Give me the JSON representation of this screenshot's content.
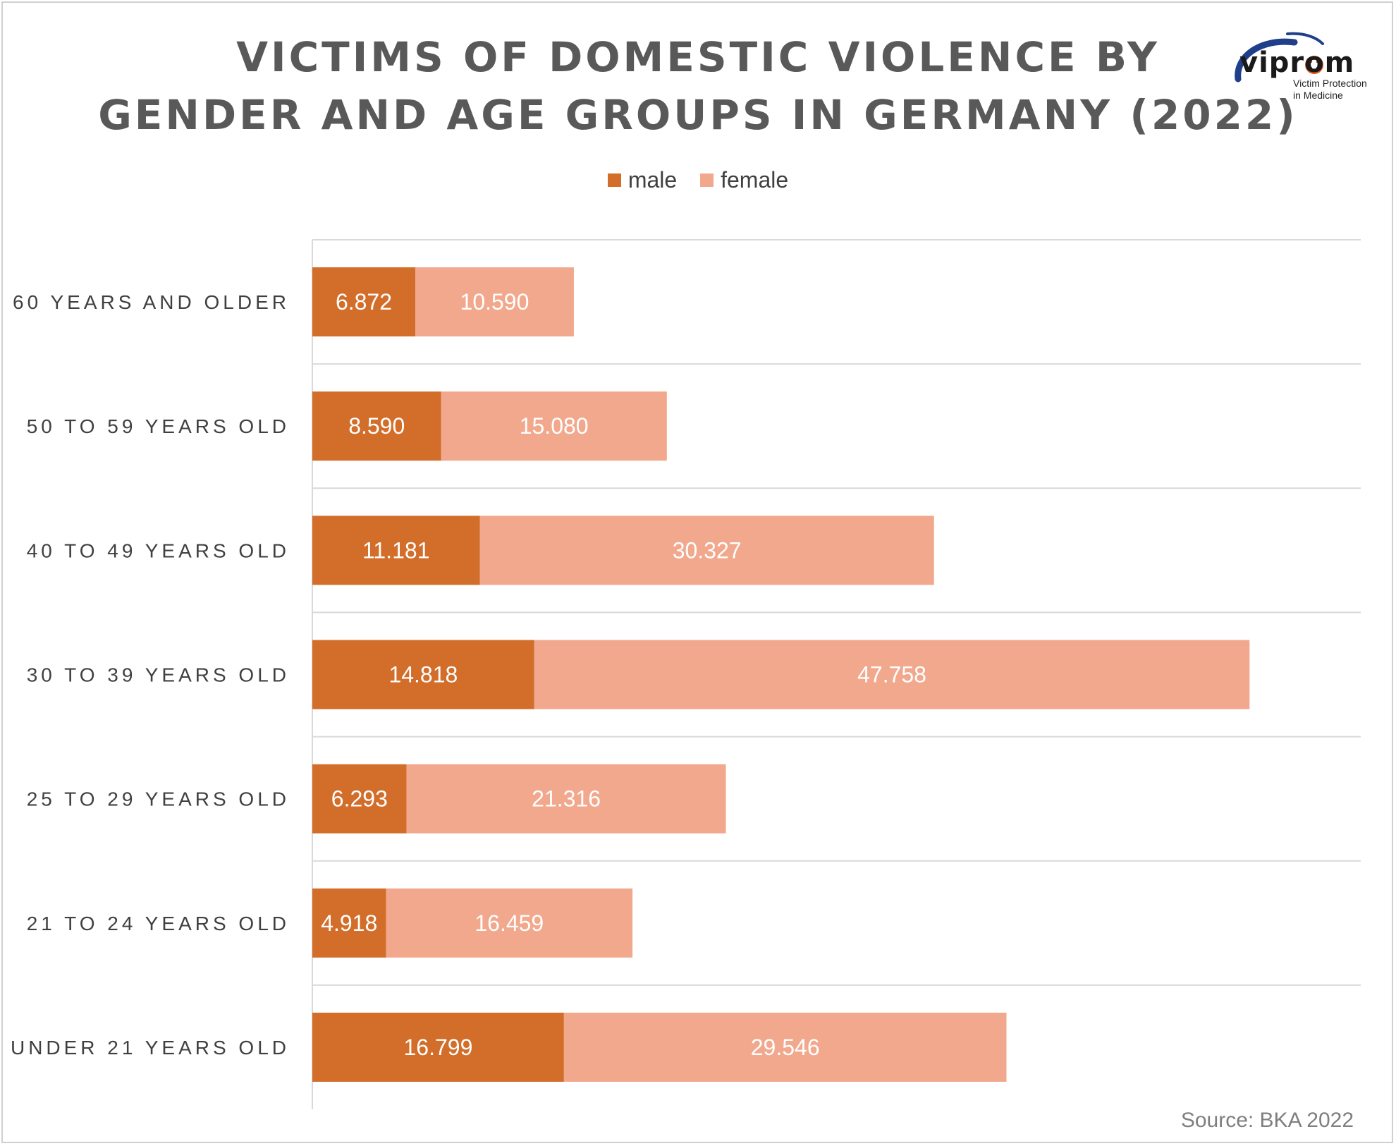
{
  "title": {
    "line1": "VICTIMS OF DOMESTIC VIOLENCE BY",
    "line2": "GENDER AND AGE GROUPS IN GERMANY (2022)"
  },
  "logo": {
    "name": "viprom",
    "subtitle_line1": "Victim Protection",
    "subtitle_line2": "in Medicine"
  },
  "source": "Source: BKA 2022",
  "chart_data": {
    "type": "bar",
    "orientation": "horizontal",
    "stacked": true,
    "title": "VICTIMS OF DOMESTIC VIOLENCE BY GENDER AND AGE GROUPS IN GERMANY (2022)",
    "categories": [
      "60 YEARS AND OLDER",
      "50 TO 59 YEARS OLD",
      "40 TO 49 YEARS OLD",
      "30 TO 39 YEARS OLD",
      "25 TO 29 YEARS OLD",
      "21 TO 24 YEARS OLD",
      "UNDER 21 YEARS OLD"
    ],
    "series": [
      {
        "name": "male",
        "color": "#d26d2a",
        "values": [
          6872,
          8590,
          11181,
          14818,
          6293,
          4918,
          16799
        ],
        "labels": [
          "6.872",
          "8.590",
          "11.181",
          "14.818",
          "6.293",
          "4.918",
          "16.799"
        ]
      },
      {
        "name": "female",
        "color": "#f1a88c",
        "values": [
          10590,
          15080,
          30327,
          47758,
          21316,
          16459,
          29546
        ],
        "labels": [
          "10.590",
          "15.080",
          "30.327",
          "47.758",
          "21.316",
          "16.459",
          "29.546"
        ]
      }
    ],
    "xlim": [
      0,
      70000
    ],
    "grid": true,
    "legend_position": "top-center"
  }
}
